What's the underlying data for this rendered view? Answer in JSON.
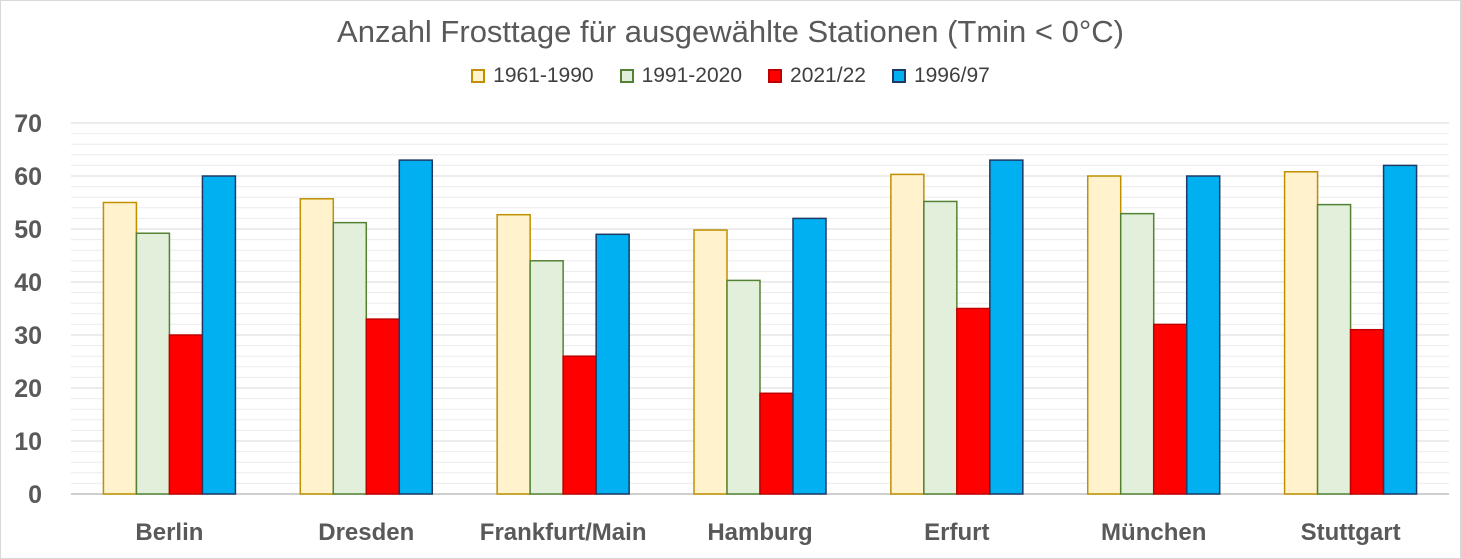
{
  "chart_data": {
    "type": "bar",
    "title": "Anzahl Frosttage für ausgewählte Stationen (Tmin < 0°C)",
    "xlabel": "",
    "ylabel": "",
    "ylim": [
      0,
      70
    ],
    "yticks": [
      "0",
      "10",
      "20",
      "30",
      "40",
      "50",
      "60",
      "70"
    ],
    "grid": true,
    "legend_position": "top",
    "categories": [
      "Berlin",
      "Dresden",
      "Frankfurt/Main",
      "Hamburg",
      "Erfurt",
      "München",
      "Stuttgart"
    ],
    "series": [
      {
        "name": "1961-1990",
        "fill": "#fff2cc",
        "stroke": "#bf9000",
        "values": [
          55,
          55.7,
          52.7,
          49.8,
          60.3,
          60,
          60.8
        ]
      },
      {
        "name": "1991-2020",
        "fill": "#e2efda",
        "stroke": "#548235",
        "values": [
          49.2,
          51.2,
          44,
          40.3,
          55.2,
          52.9,
          54.6
        ]
      },
      {
        "name": "2021/22",
        "fill": "#ff0000",
        "stroke": "#c00000",
        "values": [
          30,
          33,
          26,
          19,
          35,
          32,
          31
        ]
      },
      {
        "name": "1996/97",
        "fill": "#00b0f0",
        "stroke": "#1f3864",
        "values": [
          60,
          63,
          49,
          52,
          63,
          60,
          62
        ]
      }
    ]
  }
}
